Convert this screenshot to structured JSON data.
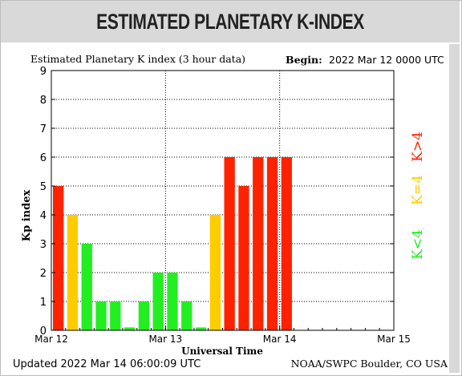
{
  "header": {
    "title": "ESTIMATED PLANETARY K-INDEX"
  },
  "chart_data": {
    "type": "bar",
    "title": "Estimated Planetary K index (3 hour data)",
    "begin_label": "Begin:",
    "begin_value": "2022 Mar 12 0000 UTC",
    "ylabel": "Kp index",
    "xlabel": "Universal Time",
    "ylim": [
      0,
      9
    ],
    "yticks": [
      "0",
      "1",
      "2",
      "3",
      "4",
      "5",
      "6",
      "7",
      "8",
      "9"
    ],
    "xtick_labels": [
      "Mar 12",
      "Mar 13",
      "Mar 14",
      "Mar 15"
    ],
    "x_range_days": [
      0,
      3
    ],
    "grid": "dotted",
    "bar_interval_hours": 3,
    "values": [
      5,
      4,
      3,
      1,
      1,
      0.1,
      1,
      2,
      2,
      1,
      0.1,
      4,
      6,
      5,
      6,
      6,
      6
    ],
    "legend": [
      {
        "label": "K>4",
        "color": "#ff2200"
      },
      {
        "label": "K=4",
        "color": "#ffcc00"
      },
      {
        "label": "K<4",
        "color": "#22ee22"
      }
    ],
    "colors": {
      "high": "#ff2200",
      "equal": "#ffcc00",
      "low": "#22ee22"
    },
    "updated": "Updated 2022 Mar 14 06:00:09 UTC",
    "credit": "NOAA/SWPC Boulder, CO USA"
  }
}
